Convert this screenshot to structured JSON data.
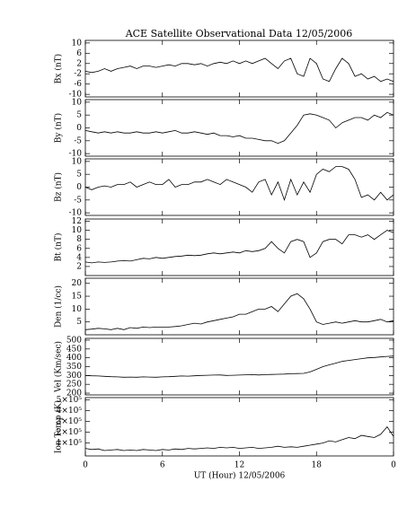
{
  "title": "ACE Satellite Observational Data   12/05/2006",
  "chart_data": [
    {
      "type": "line",
      "ylabel": "Bx (nT)",
      "xlim": [
        0,
        24
      ],
      "ylim": [
        -11,
        11
      ],
      "yticks": [
        10,
        6,
        2,
        -2,
        -6,
        -10
      ],
      "color": "#000000",
      "x": [
        0,
        0.5,
        1,
        1.5,
        2,
        2.5,
        3,
        3.5,
        4,
        4.5,
        5,
        5.5,
        6,
        6.5,
        7,
        7.5,
        8,
        8.5,
        9,
        9.5,
        10,
        10.5,
        11,
        11.5,
        12,
        12.5,
        13,
        13.5,
        14,
        14.5,
        15,
        15.5,
        16,
        16.5,
        17,
        17.5,
        18,
        18.5,
        19,
        19.5,
        20,
        20.5,
        21,
        21.5,
        22,
        22.5,
        23,
        23.5,
        24
      ],
      "values": [
        -1,
        -1.5,
        -1,
        0,
        -1,
        0,
        0.5,
        1,
        0,
        1,
        1,
        0.5,
        1,
        1.5,
        1,
        2,
        2,
        1.5,
        2,
        1,
        2,
        2.5,
        2,
        3,
        2,
        3,
        2,
        3,
        4,
        2,
        0,
        3,
        4,
        -2,
        -3,
        4,
        2,
        -4,
        -5,
        0,
        4,
        2,
        -3,
        -2,
        -4,
        -3,
        -5,
        -4,
        -5
      ]
    },
    {
      "type": "line",
      "ylabel": "By (nT)",
      "xlim": [
        0,
        24
      ],
      "ylim": [
        -11,
        11
      ],
      "yticks": [
        10,
        5,
        0,
        -5,
        -10
      ],
      "color": "#000000",
      "x": [
        0,
        0.5,
        1,
        1.5,
        2,
        2.5,
        3,
        3.5,
        4,
        4.5,
        5,
        5.5,
        6,
        6.5,
        7,
        7.5,
        8,
        8.5,
        9,
        9.5,
        10,
        10.5,
        11,
        11.5,
        12,
        12.5,
        13,
        13.5,
        14,
        14.5,
        15,
        15.5,
        16,
        16.5,
        17,
        17.5,
        18,
        18.5,
        19,
        19.5,
        20,
        20.5,
        21,
        21.5,
        22,
        22.5,
        23,
        23.5,
        24
      ],
      "values": [
        -1,
        -1.5,
        -2,
        -1.5,
        -2,
        -1.5,
        -2,
        -2,
        -1.5,
        -2,
        -2,
        -1.5,
        -2,
        -1.5,
        -1,
        -2,
        -2,
        -1.5,
        -2,
        -2.5,
        -2,
        -3,
        -3,
        -3.5,
        -3,
        -4,
        -4,
        -4.5,
        -5,
        -5,
        -6,
        -5,
        -2,
        1,
        5,
        5.5,
        5,
        4,
        3,
        0,
        2,
        3,
        4,
        4,
        3,
        5,
        4,
        6,
        5
      ]
    },
    {
      "type": "line",
      "ylabel": "Bz (nT)",
      "xlim": [
        0,
        24
      ],
      "ylim": [
        -11,
        11
      ],
      "yticks": [
        10,
        5,
        0,
        -5,
        -10
      ],
      "color": "#000000",
      "x": [
        0,
        0.5,
        1,
        1.5,
        2,
        2.5,
        3,
        3.5,
        4,
        4.5,
        5,
        5.5,
        6,
        6.5,
        7,
        7.5,
        8,
        8.5,
        9,
        9.5,
        10,
        10.5,
        11,
        11.5,
        12,
        12.5,
        13,
        13.5,
        14,
        14.5,
        15,
        15.5,
        16,
        16.5,
        17,
        17.5,
        18,
        18.5,
        19,
        19.5,
        20,
        20.5,
        21,
        21.5,
        22,
        22.5,
        23,
        23.5,
        24
      ],
      "values": [
        0,
        -1,
        0,
        0.5,
        0,
        1,
        1,
        2,
        0,
        1,
        2,
        1,
        1,
        3,
        0,
        1,
        1,
        2,
        2,
        3,
        2,
        1,
        3,
        2,
        1,
        0,
        -2,
        2,
        3,
        -3,
        2,
        -5,
        3,
        -3,
        2,
        -2,
        5,
        7,
        6,
        8,
        8,
        7,
        3,
        -4,
        -3,
        -5,
        -2,
        -5,
        -3
      ]
    },
    {
      "type": "line",
      "ylabel": "Bt (nT)",
      "xlim": [
        0,
        24
      ],
      "ylim": [
        0,
        12.5
      ],
      "yticks": [
        12,
        10,
        8,
        6,
        4,
        2
      ],
      "color": "#000000",
      "x": [
        0,
        0.5,
        1,
        1.5,
        2,
        2.5,
        3,
        3.5,
        4,
        4.5,
        5,
        5.5,
        6,
        6.5,
        7,
        7.5,
        8,
        8.5,
        9,
        9.5,
        10,
        10.5,
        11,
        11.5,
        12,
        12.5,
        13,
        13.5,
        14,
        14.5,
        15,
        15.5,
        16,
        16.5,
        17,
        17.5,
        18,
        18.5,
        19,
        19.5,
        20,
        20.5,
        21,
        21.5,
        22,
        22.5,
        23,
        23.5,
        24
      ],
      "values": [
        3,
        2.8,
        3,
        2.9,
        3,
        3.2,
        3.3,
        3.2,
        3.5,
        3.8,
        3.7,
        4,
        3.8,
        4,
        4.2,
        4.3,
        4.5,
        4.4,
        4.5,
        4.8,
        5,
        4.8,
        5,
        5.2,
        5,
        5.5,
        5.3,
        5.5,
        6,
        7.5,
        6,
        5,
        7.5,
        8,
        7.5,
        4,
        5,
        7.5,
        8,
        8,
        7,
        9,
        9,
        8.5,
        9,
        8,
        9,
        10,
        9.5
      ]
    },
    {
      "type": "line",
      "ylabel": "Den (1/cc)",
      "xlim": [
        0,
        24
      ],
      "ylim": [
        0,
        22
      ],
      "yticks": [
        20,
        15,
        10,
        5
      ],
      "color": "#000000",
      "x": [
        0,
        0.5,
        1,
        1.5,
        2,
        2.5,
        3,
        3.5,
        4,
        4.5,
        5,
        5.5,
        6,
        6.5,
        7,
        7.5,
        8,
        8.5,
        9,
        9.5,
        10,
        10.5,
        11,
        11.5,
        12,
        12.5,
        13,
        13.5,
        14,
        14.5,
        15,
        15.5,
        16,
        16.5,
        17,
        17.5,
        18,
        18.5,
        19,
        19.5,
        20,
        20.5,
        21,
        21.5,
        22,
        22.5,
        23,
        23.5,
        24
      ],
      "values": [
        2,
        2.2,
        2.5,
        2.3,
        2,
        2.5,
        2,
        2.8,
        2.5,
        3,
        2.8,
        3,
        3,
        3,
        3.2,
        3.5,
        4,
        4.5,
        4.2,
        5,
        5.5,
        6,
        6.5,
        7,
        8,
        8,
        9,
        10,
        10,
        11,
        9,
        12,
        15,
        16,
        14,
        10,
        5,
        4,
        4.5,
        5,
        4.5,
        5,
        5.5,
        5,
        5,
        5.5,
        6,
        5,
        5.5
      ]
    },
    {
      "type": "line",
      "ylabel": "Vel (Km/sec)",
      "xlim": [
        0,
        24
      ],
      "ylim": [
        190,
        510
      ],
      "yticks": [
        500,
        450,
        400,
        350,
        300,
        250,
        200
      ],
      "color": "#000000",
      "x": [
        0,
        0.5,
        1,
        1.5,
        2,
        2.5,
        3,
        3.5,
        4,
        4.5,
        5,
        5.5,
        6,
        6.5,
        7,
        7.5,
        8,
        8.5,
        9,
        9.5,
        10,
        10.5,
        11,
        11.5,
        12,
        12.5,
        13,
        13.5,
        14,
        14.5,
        15,
        15.5,
        16,
        16.5,
        17,
        17.5,
        18,
        18.5,
        19,
        19.5,
        20,
        20.5,
        21,
        21.5,
        22,
        22.5,
        23,
        23.5,
        24
      ],
      "values": [
        300,
        298,
        297,
        295,
        293,
        292,
        290,
        291,
        290,
        292,
        291,
        290,
        292,
        293,
        295,
        297,
        296,
        298,
        300,
        301,
        302,
        303,
        300,
        301,
        302,
        304,
        305,
        303,
        305,
        306,
        307,
        308,
        310,
        311,
        312,
        320,
        335,
        350,
        360,
        370,
        380,
        385,
        390,
        395,
        400,
        402,
        405,
        408,
        410
      ]
    },
    {
      "type": "line",
      "ylabel": "Ion Temp (K)",
      "xlabel": "UT (Hour)  12/05/2006",
      "xlim": [
        0,
        24
      ],
      "xticks": [
        0,
        6,
        12,
        18,
        {
          "value": 24,
          "label": "0"
        }
      ],
      "ylim": [
        -20000,
        520000
      ],
      "yticks": [
        {
          "value": 500000,
          "label": "5×10⁵"
        },
        {
          "value": 400000,
          "label": "4×10⁵"
        },
        {
          "value": 300000,
          "label": "3×10⁵"
        },
        {
          "value": 200000,
          "label": "2×10⁵"
        },
        {
          "value": 100000,
          "label": "1×10⁵"
        }
      ],
      "color": "#000000",
      "x": [
        0,
        0.5,
        1,
        1.5,
        2,
        2.5,
        3,
        3.5,
        4,
        4.5,
        5,
        5.5,
        6,
        6.5,
        7,
        7.5,
        8,
        8.5,
        9,
        9.5,
        10,
        10.5,
        11,
        11.5,
        12,
        12.5,
        13,
        13.5,
        14,
        14.5,
        15,
        15.5,
        16,
        16.5,
        17,
        17.5,
        18,
        18.5,
        19,
        19.5,
        20,
        20.5,
        21,
        21.5,
        22,
        22.5,
        23,
        23.5,
        24
      ],
      "values": [
        50000,
        40000,
        45000,
        30000,
        35000,
        40000,
        30000,
        35000,
        30000,
        40000,
        35000,
        30000,
        40000,
        35000,
        45000,
        40000,
        50000,
        45000,
        50000,
        55000,
        50000,
        60000,
        55000,
        60000,
        50000,
        55000,
        60000,
        50000,
        55000,
        60000,
        70000,
        60000,
        65000,
        60000,
        70000,
        80000,
        90000,
        100000,
        120000,
        110000,
        130000,
        150000,
        140000,
        170000,
        160000,
        150000,
        180000,
        250000,
        160000
      ]
    }
  ]
}
